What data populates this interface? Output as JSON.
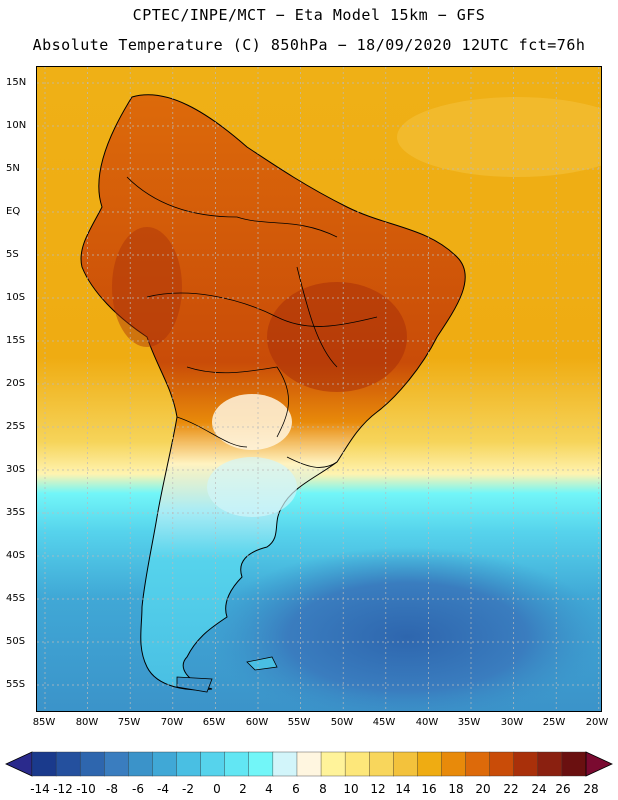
{
  "header": {
    "title_line1": "CPTEC/INPE/MCT −  Eta Model 15km − GFS",
    "title_line2": "Absolute Temperature (C) 850hPa − 18/09/2020 12UTC fct=76h"
  },
  "axes": {
    "lat_labels": [
      "15N",
      "10N",
      "5N",
      "EQ",
      "5S",
      "10S",
      "15S",
      "20S",
      "25S",
      "30S",
      "35S",
      "40S",
      "45S",
      "50S",
      "55S"
    ],
    "lon_labels": [
      "85W",
      "80W",
      "75W",
      "70W",
      "65W",
      "60W",
      "55W",
      "50W",
      "45W",
      "40W",
      "35W",
      "30W",
      "25W",
      "20W"
    ]
  },
  "colorbar": {
    "labels": [
      "-14",
      "-12",
      "-10",
      "-8",
      "-6",
      "-4",
      "-2",
      "0",
      "2",
      "4",
      "6",
      "8",
      "10",
      "12",
      "14",
      "16",
      "18",
      "20",
      "22",
      "24",
      "26",
      "28"
    ],
    "colors": [
      "#1a3a8c",
      "#24509e",
      "#2e66ae",
      "#3a7dbf",
      "#3b93c9",
      "#40a8d6",
      "#49bfe3",
      "#56d3ec",
      "#62e6f3",
      "#72f6f8",
      "#d2f5fa",
      "#fff6e0",
      "#fff39a",
      "#fde77a",
      "#f8d65c",
      "#f3c23c",
      "#efac12",
      "#e88a0a",
      "#dd6a0a",
      "#c94c08",
      "#a9300a",
      "#8a2010",
      "#6a1010"
    ],
    "under_color": "#2a2a8c",
    "over_color": "#7a0a30"
  },
  "map": {
    "ocean_warm": "#efb016",
    "ocean_cool": "#5fd9ee",
    "land_color": "#d25a0e",
    "gridline_color": "#bbbbbb",
    "coast_color": "#000000"
  }
}
